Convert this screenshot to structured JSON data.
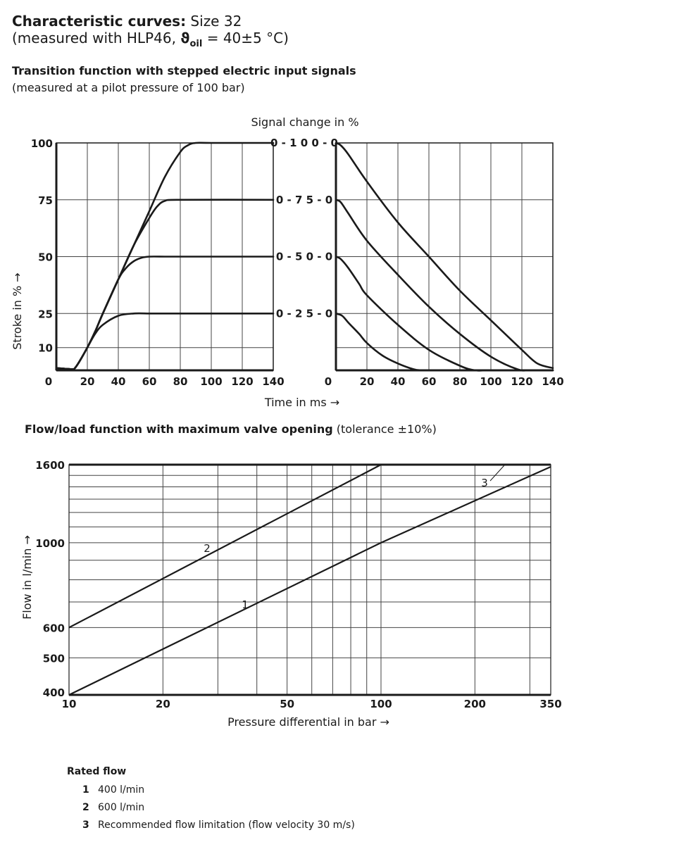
{
  "header": {
    "title_bold": "Characteristic curves:",
    "title_rest": " Size 32",
    "measured_prefix": "(measured with HLP46, ",
    "theta": "ϑ",
    "oil": "oil",
    "measured_suffix": " = 40±5 °C)"
  },
  "section1": {
    "title": "Transition function with stepped electric input signals",
    "subtitle": "(measured at a pilot pressure of 100 bar)"
  },
  "section2": {
    "title": "Flow/load function with maximum valve opening",
    "tolerance": " (tolerance ±10%)"
  },
  "legend": {
    "title": "Rated flow",
    "items": [
      {
        "num": "1",
        "text": "400 l/min"
      },
      {
        "num": "2",
        "text": "600 l/min"
      },
      {
        "num": "3",
        "text": "Recommended flow limitation (flow velocity 30 m/s)"
      }
    ]
  },
  "chart_data": [
    {
      "type": "line",
      "ylabel": "Stroke in % →",
      "xlabel": "Time in ms →",
      "xlim": [
        0,
        140
      ],
      "ylim": [
        0,
        100
      ],
      "x_ticks": [
        "0",
        "20",
        "40",
        "60",
        "80",
        "100",
        "120",
        "140"
      ],
      "y_ticks": [
        "10",
        "25",
        "50",
        "75",
        "100"
      ],
      "grid": true,
      "series": [
        {
          "x": [
            0,
            10,
            12,
            15,
            20,
            25,
            30,
            40,
            50,
            60,
            70,
            80,
            140
          ],
          "y": [
            1,
            0.5,
            1,
            4,
            10,
            16,
            20,
            24,
            25,
            25,
            25,
            25,
            25
          ]
        },
        {
          "x": [
            0,
            10,
            12,
            15,
            20,
            25,
            30,
            40,
            45,
            50,
            55,
            60,
            70,
            80,
            140
          ],
          "y": [
            1,
            0.5,
            1,
            4,
            10,
            17,
            25,
            40,
            45,
            48,
            49.5,
            50,
            50,
            50,
            50
          ]
        },
        {
          "x": [
            0,
            10,
            12,
            15,
            20,
            25,
            30,
            40,
            50,
            60,
            65,
            70,
            80,
            140
          ],
          "y": [
            1,
            0.5,
            1,
            4,
            10,
            17,
            25,
            40,
            55,
            67,
            72,
            74.5,
            75,
            75
          ]
        },
        {
          "x": [
            0,
            10,
            12,
            15,
            20,
            25,
            30,
            40,
            50,
            60,
            70,
            80,
            85,
            90,
            100,
            140
          ],
          "y": [
            1,
            0.5,
            1,
            4,
            10,
            17,
            25,
            40,
            55,
            70,
            85,
            96,
            99,
            100,
            100,
            100
          ]
        }
      ]
    },
    {
      "type": "line",
      "title": "Signal change in %",
      "xlabel": "Time in ms →",
      "xlim": [
        0,
        140
      ],
      "ylim": [
        0,
        100
      ],
      "x_ticks": [
        "0",
        "20",
        "40",
        "60",
        "80",
        "100",
        "120",
        "140"
      ],
      "grid": true,
      "series": [
        {
          "name": "0-100-0",
          "x": [
            0,
            3,
            8,
            20,
            40,
            60,
            80,
            100,
            120,
            130,
            140
          ],
          "y": [
            100,
            99,
            95,
            83,
            65,
            50,
            35,
            22,
            9,
            3,
            1
          ]
        },
        {
          "name": "0-75-0",
          "x": [
            0,
            3,
            8,
            20,
            40,
            60,
            80,
            100,
            117,
            125,
            140
          ],
          "y": [
            75,
            74,
            69,
            57,
            42,
            28,
            16,
            6,
            0.5,
            0,
            0
          ]
        },
        {
          "name": "0-50-0",
          "x": [
            0,
            3,
            8,
            15,
            20,
            40,
            60,
            80,
            90,
            100,
            140
          ],
          "y": [
            50,
            49,
            45,
            38,
            33,
            20,
            9,
            2,
            0,
            0,
            0
          ]
        },
        {
          "name": "0-25-0",
          "x": [
            0,
            4,
            8,
            15,
            20,
            30,
            40,
            50,
            55,
            60,
            140
          ],
          "y": [
            25,
            24,
            21,
            16,
            12,
            6.5,
            3,
            0.5,
            0,
            0,
            0
          ]
        }
      ]
    },
    {
      "type": "line",
      "xlabel": "Pressure differential in bar →",
      "ylabel": "Flow in l/min →",
      "x_scale": "log",
      "y_scale": "log",
      "xlim": [
        10,
        350
      ],
      "ylim": [
        400,
        1600
      ],
      "x_ticks": [
        "10",
        "20",
        "50",
        "100",
        "200",
        "350"
      ],
      "y_ticks": [
        "400",
        "500",
        "600",
        "1000",
        "1600"
      ],
      "grid": true,
      "series": [
        {
          "name": "1",
          "x": [
            10,
            100,
            350
          ],
          "y": [
            400,
            1000,
            1580
          ]
        },
        {
          "name": "2",
          "x": [
            10,
            100
          ],
          "y": [
            600,
            1600
          ]
        },
        {
          "name": "3",
          "x": [
            10,
            250
          ],
          "y": [
            1600,
            1600
          ]
        }
      ]
    }
  ]
}
